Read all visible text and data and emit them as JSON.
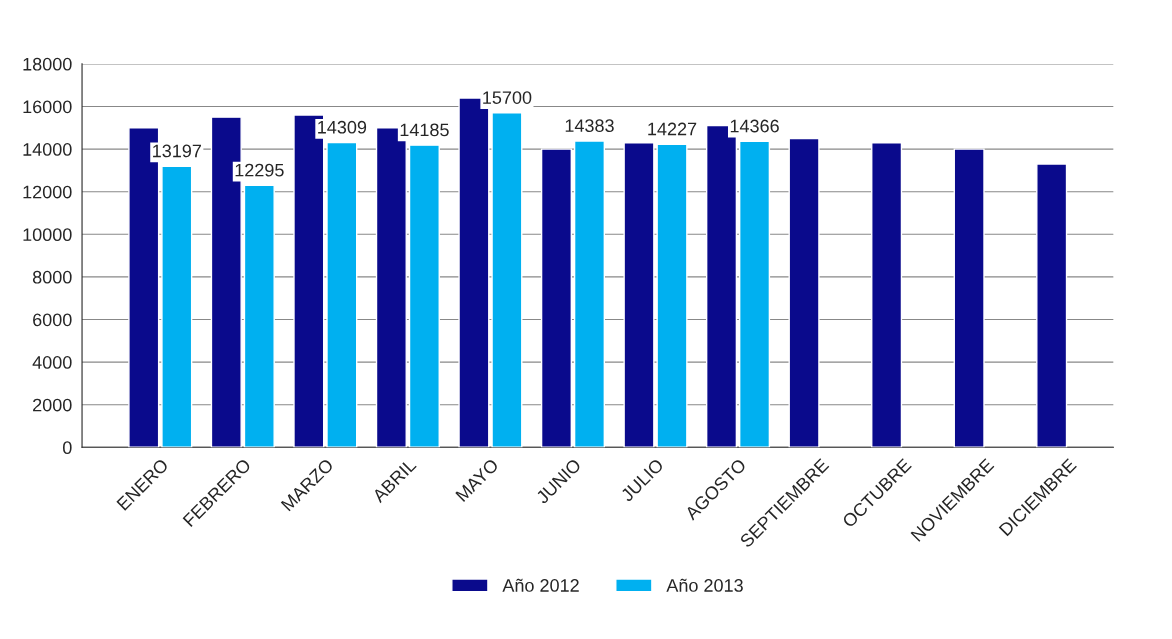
{
  "chart_data": {
    "type": "bar",
    "categories": [
      "ENERO",
      "FEBRERO",
      "MARZO",
      "ABRIL",
      "MAYO",
      "JUNIO",
      "JULIO",
      "AGOSTO",
      "SEPTIEMBRE",
      "OCTUBRE",
      "NOVIEMBRE",
      "DICIEMBRE"
    ],
    "series": [
      {
        "name": "Año 2012",
        "color": "#0a0a8c",
        "values": [
          15000,
          15500,
          15600,
          15000,
          16400,
          14000,
          14300,
          15100,
          14500,
          14300,
          14000,
          13300
        ]
      },
      {
        "name": "Año 2013",
        "color": "#00b0f0",
        "values": [
          13197,
          12295,
          14309,
          14185,
          15700,
          14383,
          14227,
          14366,
          null,
          null,
          null,
          null
        ],
        "value_labels": [
          "13197",
          "12295",
          "14309",
          "14185",
          "15700",
          "14383",
          "14227",
          "14366",
          null,
          null,
          null,
          null
        ]
      }
    ],
    "ylim": [
      0,
      18000
    ],
    "yticks": [
      0,
      2000,
      4000,
      6000,
      8000,
      10000,
      12000,
      14000,
      16000,
      18000
    ],
    "grid": "y",
    "legend": "bottom"
  }
}
